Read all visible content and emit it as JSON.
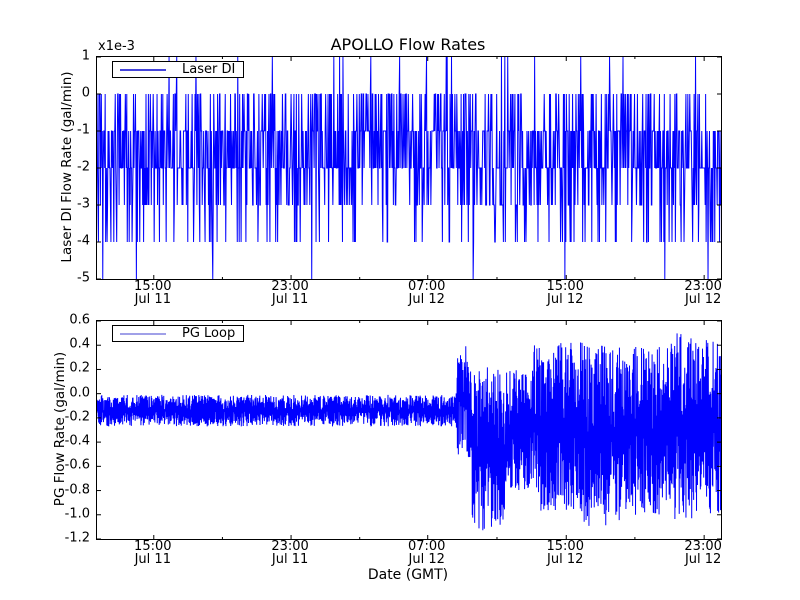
{
  "figure": {
    "background": "#ffffff",
    "axis_color": "#000000"
  },
  "chart_data": [
    {
      "type": "line",
      "title": "APOLLO Flow Rates",
      "ylabel": "Laser DI Flow Rate (gal/min)",
      "y_scale_label": "x1e-3",
      "legend": {
        "label": "Laser DI",
        "sample_color": "#4444dd",
        "position": "upper left"
      },
      "line_color": "#0000ff",
      "ylim": [
        -5,
        1
      ],
      "yticks": [
        1,
        0,
        -1,
        -2,
        -3,
        -4,
        -5
      ],
      "ytick_format": "int",
      "xticks": [
        {
          "pos": 0.091,
          "time": "15:00",
          "date": "Jul 11"
        },
        {
          "pos": 0.311,
          "time": "23:00",
          "date": "Jul 11"
        },
        {
          "pos": 0.53,
          "time": "07:00",
          "date": "Jul 12"
        },
        {
          "pos": 0.752,
          "time": "15:00",
          "date": "Jul 12"
        },
        {
          "pos": 0.973,
          "time": "23:00",
          "date": "Jul 12"
        }
      ],
      "xticks_minor": [
        0.201,
        0.421,
        0.641,
        0.862
      ],
      "grid": false,
      "signal": {
        "kind": "discrete",
        "description": "Quantized flow reading stepping among 1e-3 gal/min levels; dwells mostly -1 to -3, frequent 0, occasional -4, rare +1 spikes and -5 dips",
        "n": 1300,
        "seed": 1234,
        "levels": [
          1,
          0,
          -1,
          -2,
          -3,
          -4,
          -5
        ],
        "weights": [
          0.012,
          0.16,
          0.3,
          0.31,
          0.14,
          0.072,
          0.006
        ]
      }
    },
    {
      "type": "line",
      "ylabel": "PG Flow Rate (gal/min)",
      "xlabel": "Date (GMT)",
      "legend": {
        "label": "PG Loop",
        "sample_color": "#a0a0e8",
        "position": "upper left"
      },
      "line_color": "#0000ff",
      "ylim": [
        -1.2,
        0.6
      ],
      "yticks": [
        0.6,
        0.4,
        0.2,
        0.0,
        -0.2,
        -0.4,
        -0.6,
        -0.8,
        -1.0,
        -1.2
      ],
      "ytick_format": "dec1",
      "xticks": [
        {
          "pos": 0.091,
          "time": "15:00",
          "date": "Jul 11"
        },
        {
          "pos": 0.311,
          "time": "23:00",
          "date": "Jul 11"
        },
        {
          "pos": 0.53,
          "time": "07:00",
          "date": "Jul 12"
        },
        {
          "pos": 0.752,
          "time": "15:00",
          "date": "Jul 12"
        },
        {
          "pos": 0.973,
          "time": "23:00",
          "date": "Jul 12"
        }
      ],
      "xticks_minor": [
        0.201,
        0.421,
        0.641,
        0.862
      ],
      "grid": false,
      "signal": {
        "kind": "segments",
        "description": "Quiet noise band near -0.15 until ~08:30 Jul 12, then large chaotic oscillations between about +0.5 and -1.15",
        "n": 2600,
        "seed": 777,
        "segments": [
          [
            0.0,
            0.575,
            -0.14,
            0.13
          ],
          [
            0.575,
            0.6,
            -0.05,
            0.5
          ],
          [
            0.6,
            0.655,
            -0.45,
            0.68
          ],
          [
            0.655,
            0.7,
            -0.3,
            0.5
          ],
          [
            0.7,
            0.78,
            -0.27,
            0.7
          ],
          [
            0.78,
            0.84,
            -0.35,
            0.75
          ],
          [
            0.84,
            0.92,
            -0.3,
            0.7
          ],
          [
            0.92,
            1.0,
            -0.27,
            0.77
          ]
        ]
      }
    }
  ]
}
